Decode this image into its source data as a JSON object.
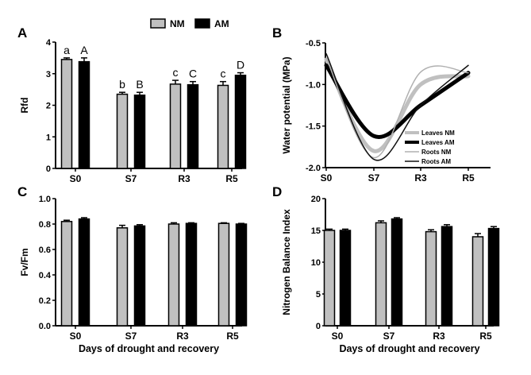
{
  "chart_data": [
    {
      "panel": "A",
      "type": "bar",
      "categories": [
        "S0",
        "S7",
        "R3",
        "R5"
      ],
      "ylabel": "Rfd",
      "xlabel": "",
      "ylim": [
        0,
        4
      ],
      "yticks": [
        "0",
        "1",
        "2",
        "3",
        "4"
      ],
      "legend": {
        "placement": "top-right",
        "entries": [
          "NM",
          "AM"
        ]
      },
      "series": [
        {
          "name": "NM",
          "color": "#c0c0c0",
          "values": [
            3.45,
            2.35,
            2.67,
            2.63
          ],
          "errors": [
            0.05,
            0.06,
            0.12,
            0.12
          ],
          "letters": [
            "a",
            "b",
            "c",
            "c"
          ]
        },
        {
          "name": "AM",
          "color": "#000000",
          "values": [
            3.38,
            2.32,
            2.65,
            2.95
          ],
          "errors": [
            0.12,
            0.09,
            0.1,
            0.08
          ],
          "letters": [
            "A",
            "B",
            "C",
            "D"
          ]
        }
      ]
    },
    {
      "panel": "B",
      "type": "line",
      "categories": [
        "S0",
        "S7",
        "R3",
        "R5"
      ],
      "ylabel": "Water potential (MPa)",
      "xlabel": "",
      "ylim": [
        -2.0,
        -0.5
      ],
      "yticks": [
        "-2.0",
        "-1.5",
        "-1.0",
        "-0.5"
      ],
      "legend": {
        "placement": "bottom-right"
      },
      "series": [
        {
          "name": "Leaves NM",
          "color": "#c0c0c0",
          "width": 5,
          "values": [
            -0.7,
            -1.8,
            -1.0,
            -0.9
          ]
        },
        {
          "name": "Leaves AM",
          "color": "#000000",
          "width": 5,
          "values": [
            -0.77,
            -1.62,
            -1.25,
            -0.86
          ]
        },
        {
          "name": "Roots NM",
          "color": "#b0b0b0",
          "width": 1.5,
          "values": [
            -0.68,
            -1.88,
            -0.85,
            -0.86
          ]
        },
        {
          "name": "Roots AM",
          "color": "#111111",
          "width": 1.5,
          "values": [
            -0.63,
            -1.9,
            -1.25,
            -0.77
          ]
        }
      ]
    },
    {
      "panel": "C",
      "type": "bar",
      "categories": [
        "S0",
        "S7",
        "R3",
        "R5"
      ],
      "ylabel": "Fv/Fm",
      "xlabel": "Days of drought and recovery",
      "ylim": [
        0,
        1
      ],
      "yticks": [
        "0.0",
        "0.2",
        "0.4",
        "0.6",
        "0.8",
        "1.0"
      ],
      "series": [
        {
          "name": "NM",
          "color": "#c0c0c0",
          "values": [
            0.82,
            0.77,
            0.8,
            0.805
          ],
          "errors": [
            0.01,
            0.02,
            0.01,
            0.005
          ]
        },
        {
          "name": "AM",
          "color": "#000000",
          "values": [
            0.84,
            0.785,
            0.805,
            0.8
          ],
          "errors": [
            0.01,
            0.01,
            0.005,
            0.005
          ]
        }
      ]
    },
    {
      "panel": "D",
      "type": "bar",
      "categories": [
        "S0",
        "S7",
        "R3",
        "R5"
      ],
      "ylabel": "Nitrogen Balance Index",
      "xlabel": "Days of drought and recovery",
      "ylim": [
        0,
        20
      ],
      "yticks": [
        "0",
        "5",
        "10",
        "15",
        "20"
      ],
      "series": [
        {
          "name": "NM",
          "color": "#c0c0c0",
          "values": [
            15.0,
            16.2,
            14.8,
            14.0
          ],
          "errors": [
            0.2,
            0.3,
            0.3,
            0.5
          ]
        },
        {
          "name": "AM",
          "color": "#000000",
          "values": [
            15.0,
            16.8,
            15.6,
            15.3
          ],
          "errors": [
            0.2,
            0.2,
            0.3,
            0.3
          ]
        }
      ]
    }
  ]
}
